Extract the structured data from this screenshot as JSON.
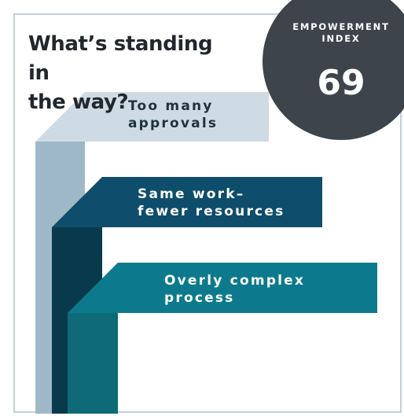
{
  "title": {
    "line1": "What’s standing in",
    "line2": "the way?"
  },
  "badge": {
    "label_line1": "EMPOWERMENT",
    "label_line2": "INDEX",
    "value": "69"
  },
  "obstacles": [
    {
      "line1": "Too many",
      "line2": "approvals",
      "color": "#cfdbe4",
      "stem_color": "#9fb8c8"
    },
    {
      "line1": "Same work–",
      "line2": "fewer resources",
      "color": "#0e4d6b",
      "stem_color": "#093a4c"
    },
    {
      "line1": "Overly complex",
      "line2": "process",
      "color": "#0c7a8c",
      "stem_color": "#0d6a76"
    }
  ],
  "colors": {
    "title_text": "#22272e",
    "badge_bg": "#3d444b",
    "frame_border": "#c5ced8"
  }
}
